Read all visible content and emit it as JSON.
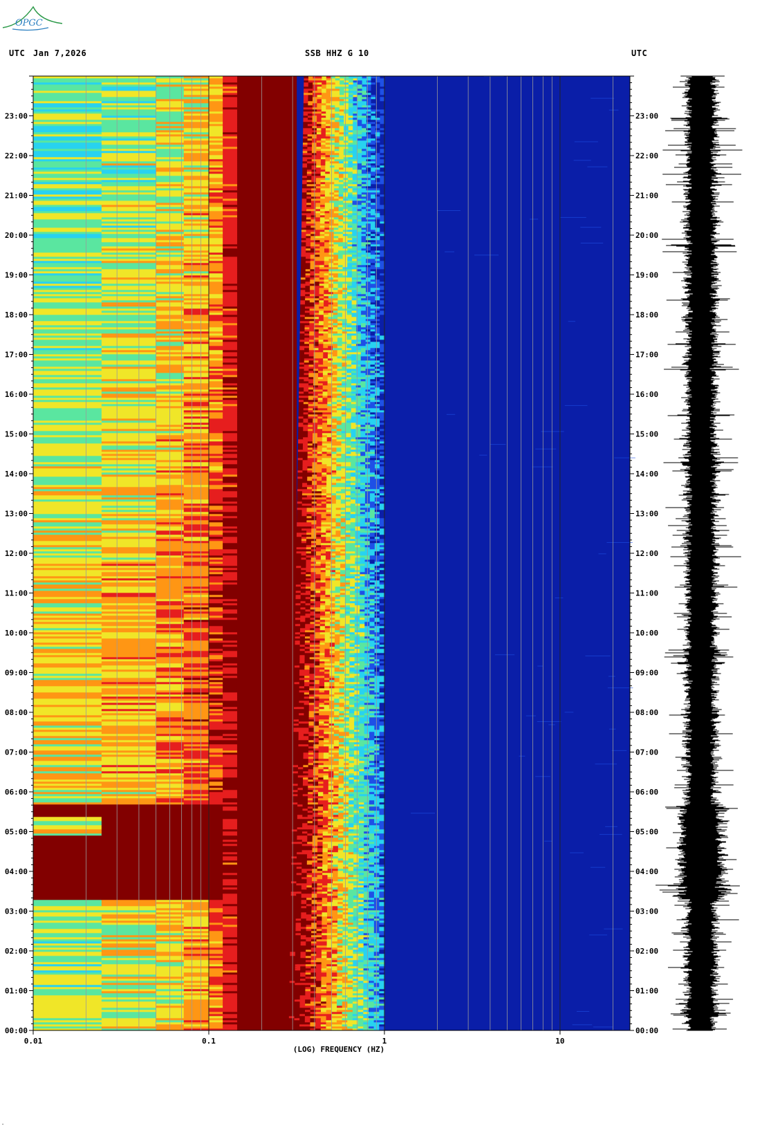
{
  "logo": {
    "text": "OPGC"
  },
  "header": {
    "left_label": "UTC",
    "date": "Jan 7,2026",
    "station": "SSB HHZ G 10",
    "right_label": "UTC"
  },
  "footer_mark": "-",
  "colors": {
    "dark_blue": "#0a1ea8",
    "blue": "#1e50e6",
    "cyan": "#28d2f0",
    "green": "#5ae6a0",
    "yellow": "#f0e628",
    "orange": "#ff9614",
    "red": "#e61e1e",
    "dark_red": "#820000"
  },
  "chart_data": {
    "type": "heatmap",
    "title": "SSB HHZ G 10",
    "xlabel": "(LOG) FREQUENCY (HZ)",
    "x_scale": "log",
    "xlim": [
      0.01,
      25
    ],
    "x_ticks": [
      {
        "value": 0.01,
        "label": "0.01"
      },
      {
        "value": 0.1,
        "label": "0.1"
      },
      {
        "value": 1,
        "label": "1"
      },
      {
        "value": 10,
        "label": "10"
      }
    ],
    "y_label_left": "UTC",
    "y_label_right": "UTC",
    "ylim_hours": [
      0,
      24
    ],
    "y_ticks": [
      "00:00",
      "01:00",
      "02:00",
      "03:00",
      "04:00",
      "05:00",
      "06:00",
      "07:00",
      "08:00",
      "09:00",
      "10:00",
      "11:00",
      "12:00",
      "13:00",
      "14:00",
      "15:00",
      "16:00",
      "17:00",
      "18:00",
      "19:00",
      "20:00",
      "21:00",
      "22:00",
      "23:00"
    ],
    "gridlines_hz": [
      0.02,
      0.03,
      0.04,
      0.05,
      0.06,
      0.07,
      0.08,
      0.09,
      0.1,
      0.2,
      0.3,
      0.4,
      0.5,
      0.6,
      0.7,
      0.8,
      0.9,
      1,
      2,
      3,
      4,
      5,
      6,
      7,
      8,
      9,
      10,
      20
    ],
    "dominant_band_hz": [
      0.12,
      0.3
    ],
    "noise_rolloff_hz": [
      0.35,
      1.0
    ],
    "quiet_band_above_hz": 1.0,
    "high_amplitude_interval_hours": [
      3.3,
      5.7
    ],
    "seismogram_panel": true
  }
}
